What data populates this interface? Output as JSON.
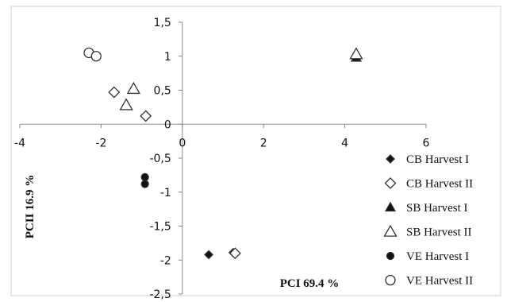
{
  "chart_data": {
    "type": "scatter",
    "title": "",
    "xlabel": "PCI 69.4 %",
    "ylabel": "PCII 16.9 %",
    "xlim": [
      -4,
      6
    ],
    "ylim": [
      -2.5,
      1.5
    ],
    "x_ticks": [
      "-4",
      "-2",
      "0",
      "2",
      "4",
      "6"
    ],
    "y_ticks": [
      "1,5",
      "1",
      "0,5",
      "0",
      "-0,5",
      "-1",
      "-1,5",
      "-2",
      "-2,5"
    ],
    "grid": false,
    "legend_position": "right",
    "series": [
      {
        "name": "CB Harvest I",
        "marker": "diamond",
        "filled": true,
        "points": [
          {
            "x": 0.65,
            "y": -1.92
          },
          {
            "x": 1.25,
            "y": -1.89
          }
        ]
      },
      {
        "name": "CB Harvest II",
        "marker": "diamond",
        "filled": false,
        "points": [
          {
            "x": -1.68,
            "y": 0.47
          },
          {
            "x": -0.9,
            "y": 0.12
          },
          {
            "x": 1.3,
            "y": -1.9
          }
        ]
      },
      {
        "name": "SB Harvest I",
        "marker": "triangle",
        "filled": true,
        "points": [
          {
            "x": 4.28,
            "y": 0.98
          }
        ]
      },
      {
        "name": "SB Harvest II",
        "marker": "triangle",
        "filled": false,
        "points": [
          {
            "x": -1.2,
            "y": 0.52
          },
          {
            "x": -1.38,
            "y": 0.28
          },
          {
            "x": 4.28,
            "y": 1.03
          }
        ]
      },
      {
        "name": "VE Harvest I",
        "marker": "circle",
        "filled": true,
        "points": [
          {
            "x": -0.92,
            "y": -0.78
          },
          {
            "x": -0.92,
            "y": -0.88
          }
        ]
      },
      {
        "name": "VE Harvest II",
        "marker": "circle",
        "filled": false,
        "points": [
          {
            "x": -2.3,
            "y": 1.05
          },
          {
            "x": -2.12,
            "y": 1.0
          }
        ]
      }
    ]
  }
}
